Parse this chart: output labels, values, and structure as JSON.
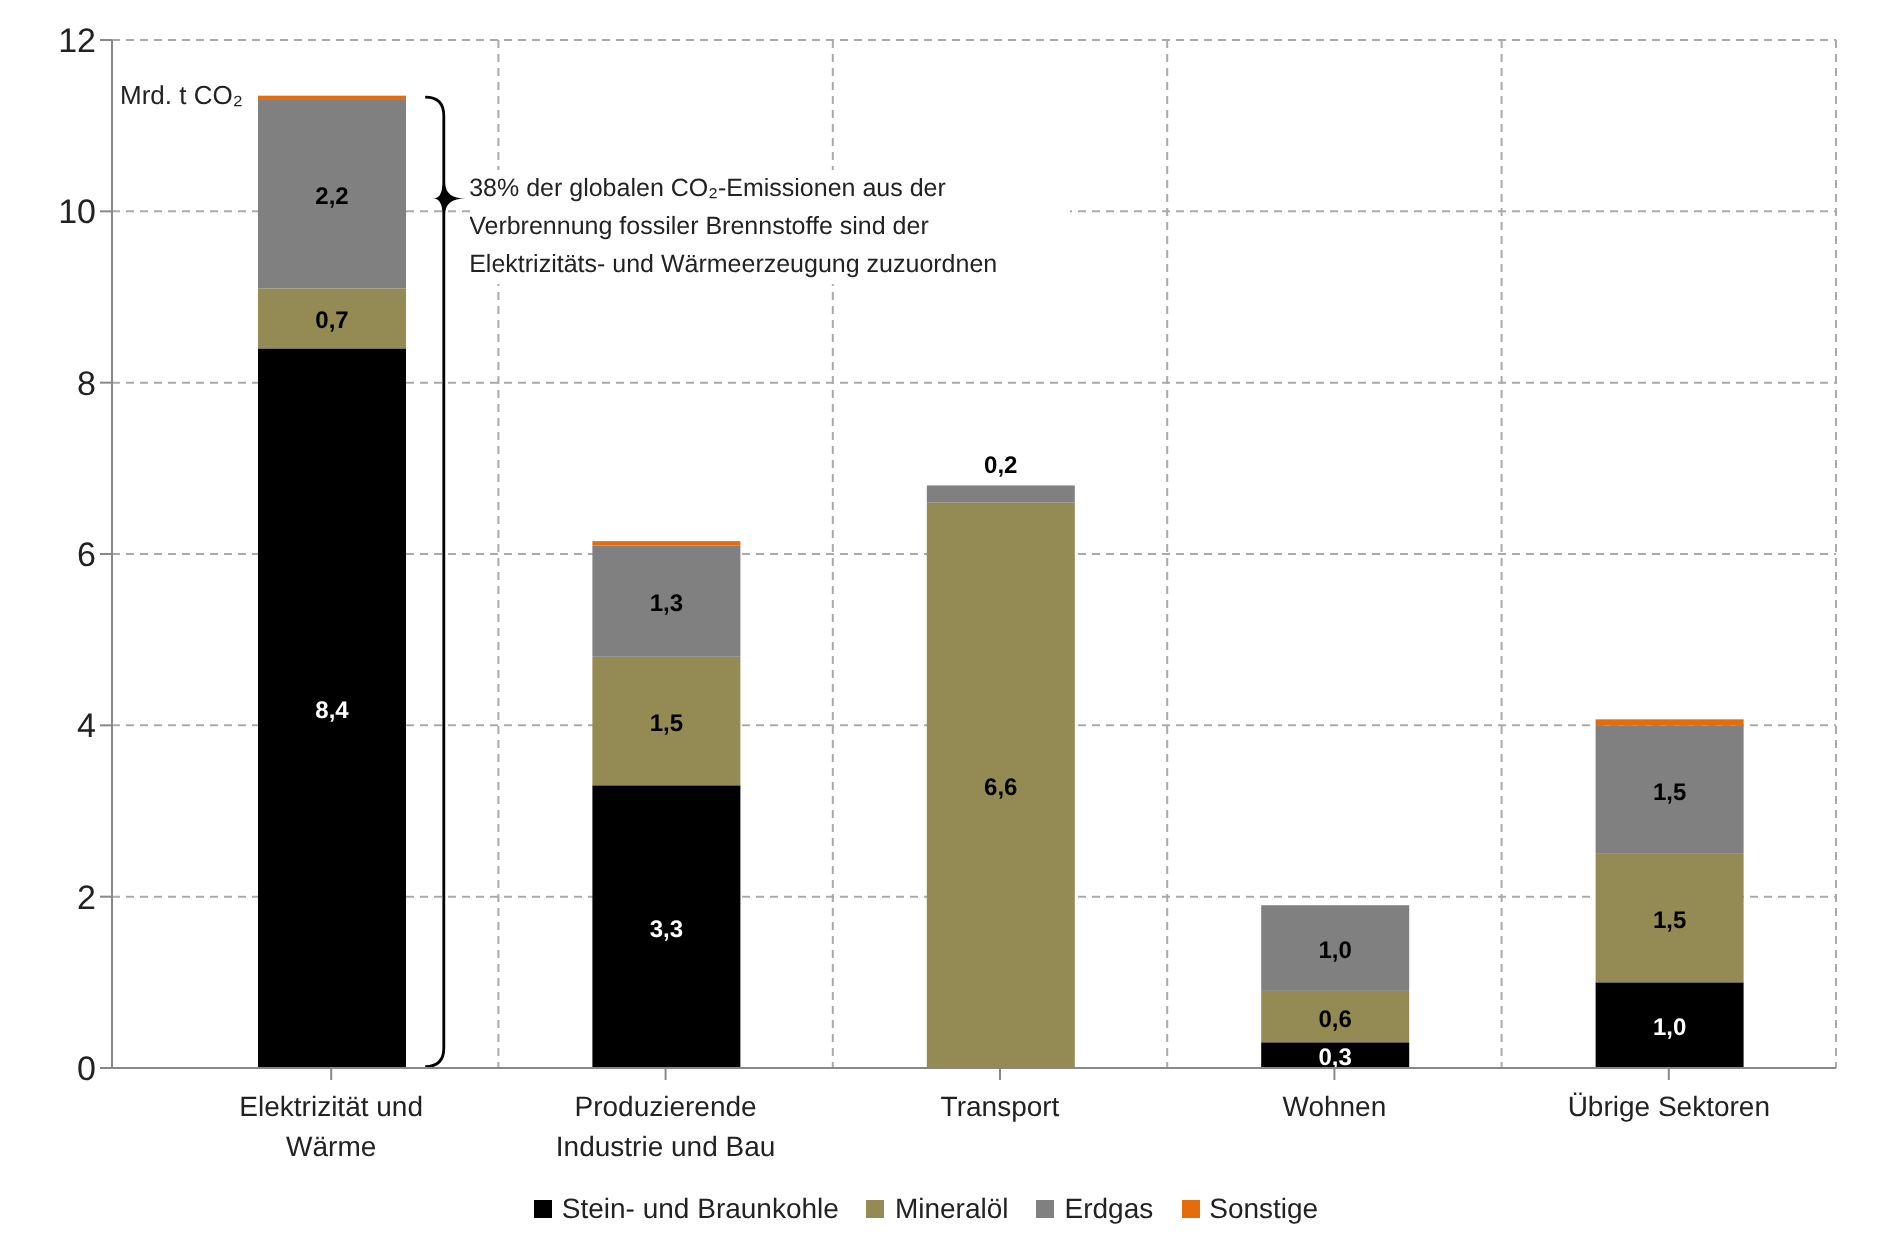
{
  "chart_data": {
    "type": "bar",
    "stacked": true,
    "ylabel": "Mrd. t CO₂",
    "categories": [
      "Elektrizität und Wärme",
      "Produzierende Industrie und Bau",
      "Transport",
      "Wohnen",
      "Übrige Sektoren"
    ],
    "series": [
      {
        "name": "Stein- und Braunkohle",
        "color": "#000000",
        "values": [
          8.4,
          3.3,
          0,
          0.3,
          1.0
        ],
        "value_labels": [
          "8,4",
          "3,3",
          null,
          "0,3",
          "1,0"
        ]
      },
      {
        "name": "Mineralöl",
        "color": "#948a54",
        "values": [
          0.7,
          1.5,
          6.6,
          0.6,
          1.5
        ],
        "value_labels": [
          "0,7",
          "1,5",
          "6,6",
          "0,6",
          "1,5"
        ]
      },
      {
        "name": "Erdgas",
        "color": "#808080",
        "values": [
          2.2,
          1.3,
          0.2,
          1.0,
          1.5
        ],
        "value_labels": [
          "2,2",
          "1,3",
          "0,2",
          "1,0",
          "1,5"
        ]
      },
      {
        "name": "Sonstige",
        "color": "#e46c0a",
        "values": [
          0.05,
          0.05,
          0,
          0,
          0.07
        ]
      }
    ],
    "ylim": [
      0,
      12
    ],
    "yticks": [
      0,
      2,
      4,
      6,
      8,
      10,
      12
    ],
    "grid": true,
    "legend": "bottom",
    "annotations": [
      "38% der globalen CO₂-Emissionen aus der Verbrennung fossiler Brennstoffe sind der Elektrizitäts- und Wärmeerzeugung zuzuordnen"
    ]
  }
}
